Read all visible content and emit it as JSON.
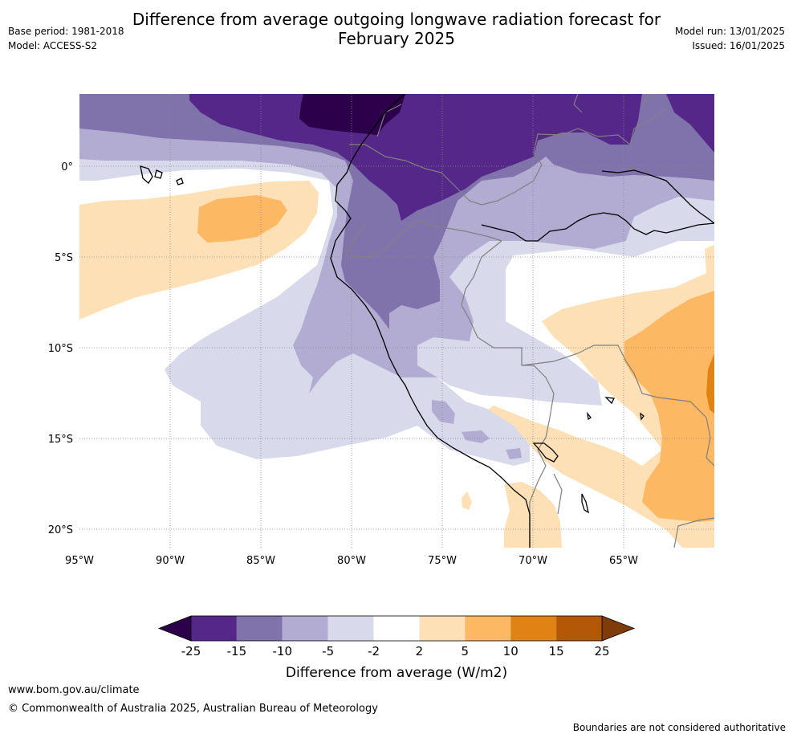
{
  "header": {
    "title_line1": "Difference from average outgoing longwave radiation forecast for",
    "title_line2": "February 2025",
    "base_period": "Base period: 1981-2018",
    "model": "Model: ACCESS-S2",
    "model_run": "Model run: 13/01/2025",
    "issued": "Issued: 16/01/2025"
  },
  "map": {
    "lon_labels": [
      "95°W",
      "90°W",
      "85°W",
      "80°W",
      "75°W",
      "70°W",
      "65°W"
    ],
    "lat_labels": [
      "0°",
      "5°S",
      "10°S",
      "15°S",
      "20°S"
    ],
    "extent": {
      "lon_min": -95,
      "lon_max": -60,
      "lat_min": -21,
      "lat_max": 4
    }
  },
  "legend": {
    "title": "Difference from average (W/m2)",
    "ticks": [
      "-25",
      "-15",
      "-10",
      "-5",
      "-2",
      "2",
      "5",
      "10",
      "15",
      "25"
    ],
    "colors": [
      "#2d004b",
      "#542788",
      "#8073ac",
      "#b2abd2",
      "#d8daeb",
      "#ffffff",
      "#fee0b6",
      "#fdb863",
      "#e08214",
      "#b35806",
      "#7f3b08"
    ]
  },
  "footer": {
    "url": "www.bom.gov.au/climate",
    "copyright": "© Commonwealth of Australia 2025, Australian Bureau of Meteorology",
    "boundaries": "Boundaries are not considered authoritative"
  }
}
